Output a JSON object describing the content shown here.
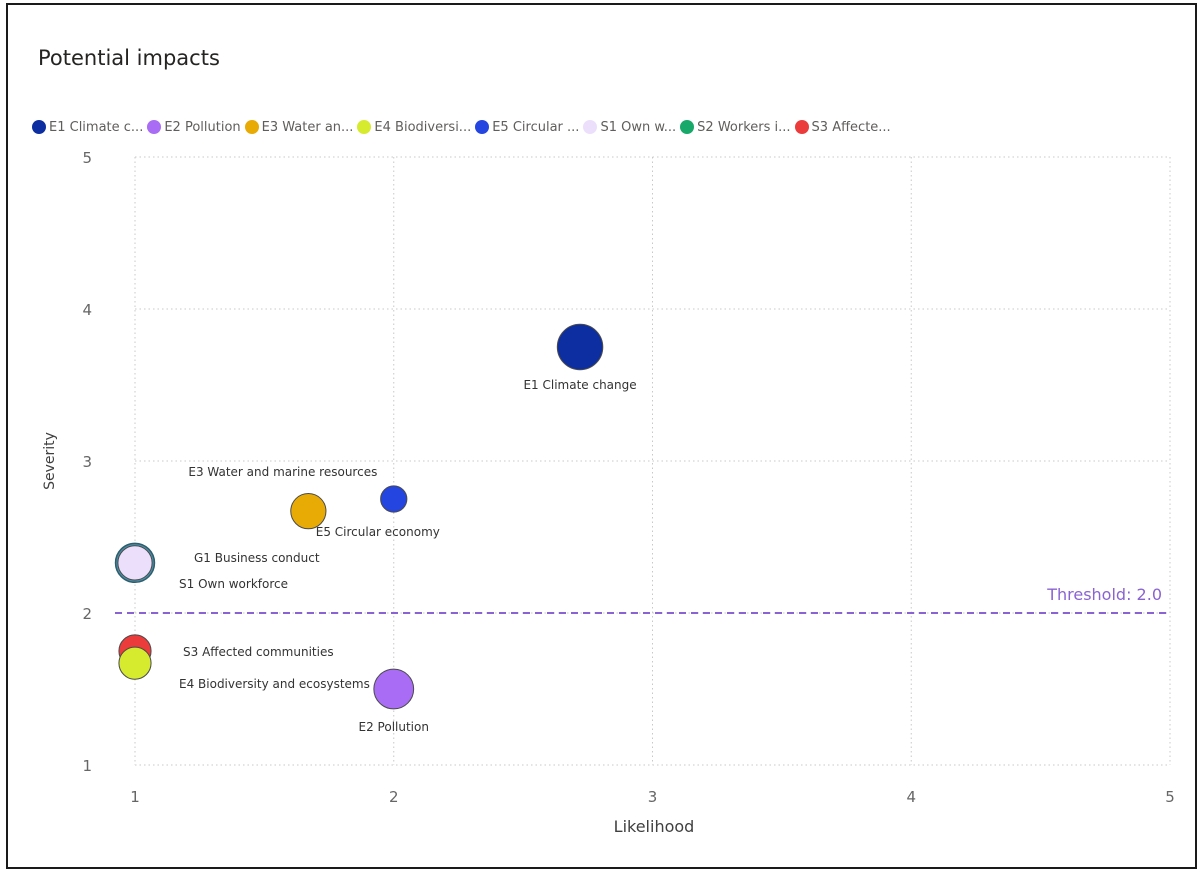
{
  "chart_data": {
    "type": "scatter",
    "title": "Potential impacts",
    "xlabel": "Likelihood",
    "ylabel": "Severity",
    "xlim": [
      1,
      5
    ],
    "ylim": [
      1,
      5
    ],
    "x_ticks": [
      "1",
      "2",
      "3",
      "4",
      "5"
    ],
    "y_ticks": [
      "1",
      "2",
      "3",
      "4",
      "5"
    ],
    "grid": true,
    "legend_position": "top",
    "legend": [
      {
        "label": "E1 Climate c...",
        "color": "#0d2ea0"
      },
      {
        "label": "E2 Pollution",
        "color": "#a86cf5"
      },
      {
        "label": "E3 Water an...",
        "color": "#e8ab05"
      },
      {
        "label": "E4 Biodiversi...",
        "color": "#d6eb2e"
      },
      {
        "label": "E5 Circular ...",
        "color": "#2545e0"
      },
      {
        "label": "S1 Own w...",
        "color": "#ebdffc"
      },
      {
        "label": "S2 Workers i...",
        "color": "#17a86a"
      },
      {
        "label": "S3 Affecte...",
        "color": "#eb3b3b"
      }
    ],
    "series": [
      {
        "name": "E1 Climate change",
        "x": 2.72,
        "y": 3.75,
        "size": 3.0,
        "color": "#0d2ea0",
        "label": "E1 Climate change"
      },
      {
        "name": "E5 Circular economy",
        "x": 2.0,
        "y": 2.75,
        "size": 1.0,
        "color": "#2545e0",
        "label": "E5 Circular economy"
      },
      {
        "name": "E3 Water and marine resources",
        "x": 1.67,
        "y": 2.67,
        "size": 1.8,
        "color": "#e8ab05",
        "label": "E3 Water and marine resources"
      },
      {
        "name": "G1 Business conduct",
        "x": 1.0,
        "y": 2.33,
        "size": 2.2,
        "color": "#4a8fa6",
        "label": "G1 Business conduct"
      },
      {
        "name": "S1 Own workforce",
        "x": 1.0,
        "y": 2.33,
        "size": 1.7,
        "color": "#ebdffc",
        "label": "S1 Own workforce"
      },
      {
        "name": "S3 Affected communities",
        "x": 1.0,
        "y": 1.75,
        "size": 1.5,
        "color": "#eb3b3b",
        "label": "S3 Affected communities"
      },
      {
        "name": "E4 Biodiversity and ecosystems",
        "x": 1.0,
        "y": 1.67,
        "size": 1.5,
        "color": "#d6eb2e",
        "label": "E4 Biodiversity and ecosystems"
      },
      {
        "name": "E2 Pollution",
        "x": 2.0,
        "y": 1.5,
        "size": 2.3,
        "color": "#a86cf5",
        "label": "E2 Pollution"
      }
    ],
    "threshold": {
      "y": 2.0,
      "label": "Threshold: 2.0",
      "color": "#8a63d2"
    }
  }
}
